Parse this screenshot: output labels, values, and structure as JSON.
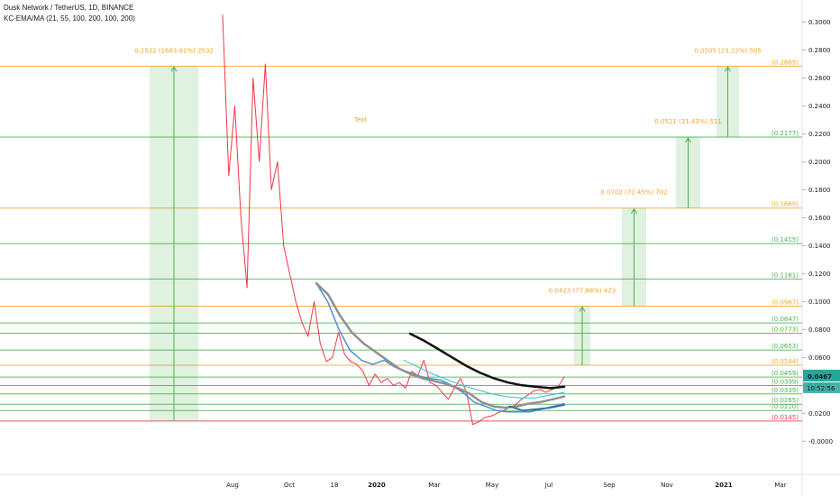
{
  "header": {
    "title": "Dusk Network / TetherUS, 1D, BINANCE",
    "indicator": "KC-EMA/MA (21, 55, 100, 200, 100, 200)"
  },
  "chart_data": {
    "type": "line",
    "title": "Dusk Network / TetherUS, 1D, BINANCE",
    "xlabel": "",
    "ylabel": "",
    "ylim": [
      -0.006,
      0.31
    ],
    "grid": false,
    "x_ticks": [
      "Aug",
      "Oct",
      "18",
      "2020",
      "Mar",
      "May",
      "Jul",
      "Sep",
      "Nov",
      "2021",
      "Mar"
    ],
    "y_ticks": [
      "-0.0000",
      "0.0200",
      "0.0400",
      "0.0600",
      "0.0800",
      "0.1000",
      "0.1200",
      "0.1400",
      "0.1600",
      "0.1800",
      "0.2000",
      "0.2200",
      "0.2400",
      "0.2600",
      "0.2800",
      "0.3000"
    ],
    "current_price": "0.0467",
    "countdown": "10:52:56",
    "annotation_text": "Text",
    "levels": [
      {
        "label": "(0.2685)",
        "value": 0.2685,
        "color": "#f5a623"
      },
      {
        "label": "(0.2177)",
        "value": 0.2177,
        "color": "#4caf50"
      },
      {
        "label": "(0.1669)",
        "value": 0.1669,
        "color": "#f5a623"
      },
      {
        "label": "(0.1415)",
        "value": 0.1415,
        "color": "#4caf50"
      },
      {
        "label": "(0.1161)",
        "value": 0.1161,
        "color": "#4caf50"
      },
      {
        "label": "(0.0967)",
        "value": 0.0967,
        "color": "#f5a623"
      },
      {
        "label": "(0.0847)",
        "value": 0.0847,
        "color": "#4caf50"
      },
      {
        "label": "(0.0773)",
        "value": 0.0773,
        "color": "#4caf50"
      },
      {
        "label": "(0.0653)",
        "value": 0.0653,
        "color": "#4caf50"
      },
      {
        "label": "(0.0544)",
        "value": 0.0544,
        "color": "#f5a623"
      },
      {
        "label": "(0.0459)",
        "value": 0.0459,
        "color": "#4caf50"
      },
      {
        "label": "(0.0399)",
        "value": 0.0399,
        "color": "#4caf50"
      },
      {
        "label": "(0.0339)",
        "value": 0.0339,
        "color": "#4caf50"
      },
      {
        "label": "(0.0265)",
        "value": 0.0265,
        "color": "#4caf50"
      },
      {
        "label": "(0.0220)",
        "value": 0.022,
        "color": "#4caf50"
      },
      {
        "label": "(0.0145)",
        "value": 0.0145,
        "color": "#f23645"
      }
    ],
    "targets": [
      {
        "label": "0.2532 (1683.61%) 2532",
        "from": 0.0145,
        "to": 0.2685
      },
      {
        "label": "0.0423 (77.88%) 423",
        "from": 0.0544,
        "to": 0.0967
      },
      {
        "label": "0.0702 (72.45%) 702",
        "from": 0.0967,
        "to": 0.1669
      },
      {
        "label": "0.0521 (31.43%) 521",
        "from": 0.1669,
        "to": 0.2177
      },
      {
        "label": "0.0505 (23.22%) 505",
        "from": 0.2177,
        "to": 0.2685
      }
    ],
    "series": [
      {
        "color": "#f23645",
        "values": [
          0.305,
          0.19,
          0.24,
          0.16,
          0.11,
          0.26,
          0.2,
          0.27,
          0.18,
          0.2,
          0.14,
          0.12,
          0.1,
          0.085,
          0.075,
          0.1,
          0.07,
          0.057,
          0.06,
          0.078,
          0.062,
          0.057,
          0.055,
          0.05,
          0.04,
          0.048,
          0.042,
          0.045,
          0.04,
          0.042,
          0.038,
          0.05,
          0.047,
          0.058,
          0.042,
          0.04,
          0.035,
          0.03,
          0.038,
          0.045,
          0.035,
          0.012,
          0.014,
          0.017,
          0.018,
          0.02,
          0.022,
          0.024,
          0.026,
          0.03,
          0.033,
          0.036,
          0.037,
          0.035,
          0.037,
          0.039,
          0.046
        ]
      },
      {
        "color": "#4a90d9",
        "values": [
          0.113,
          0.1,
          0.08,
          0.065,
          0.058,
          0.055,
          0.058,
          0.053,
          0.05,
          0.047,
          0.045,
          0.044,
          0.04,
          0.035,
          0.028,
          0.025,
          0.022,
          0.021,
          0.021,
          0.021,
          0.023,
          0.025,
          0.027
        ]
      },
      {
        "color": "#909090",
        "values": [
          0.113,
          0.105,
          0.09,
          0.078,
          0.07,
          0.064,
          0.058,
          0.052,
          0.048,
          0.045,
          0.043,
          0.041,
          0.038,
          0.034,
          0.028,
          0.025,
          0.024,
          0.025,
          0.027,
          0.028,
          0.03,
          0.032
        ]
      },
      {
        "color": "#26c6da",
        "values": [
          0.058,
          0.053,
          0.048,
          0.044,
          0.04,
          0.037,
          0.034,
          0.032,
          0.031,
          0.031,
          0.033,
          0.035
        ]
      },
      {
        "color": "#111111",
        "values": [
          0.077,
          0.072,
          0.066,
          0.06,
          0.054,
          0.049,
          0.045,
          0.042,
          0.04,
          0.039,
          0.038,
          0.039
        ]
      },
      {
        "color": "#2e6da4",
        "values": [
          0.025,
          0.022,
          0.023,
          0.024,
          0.026
        ]
      }
    ]
  }
}
